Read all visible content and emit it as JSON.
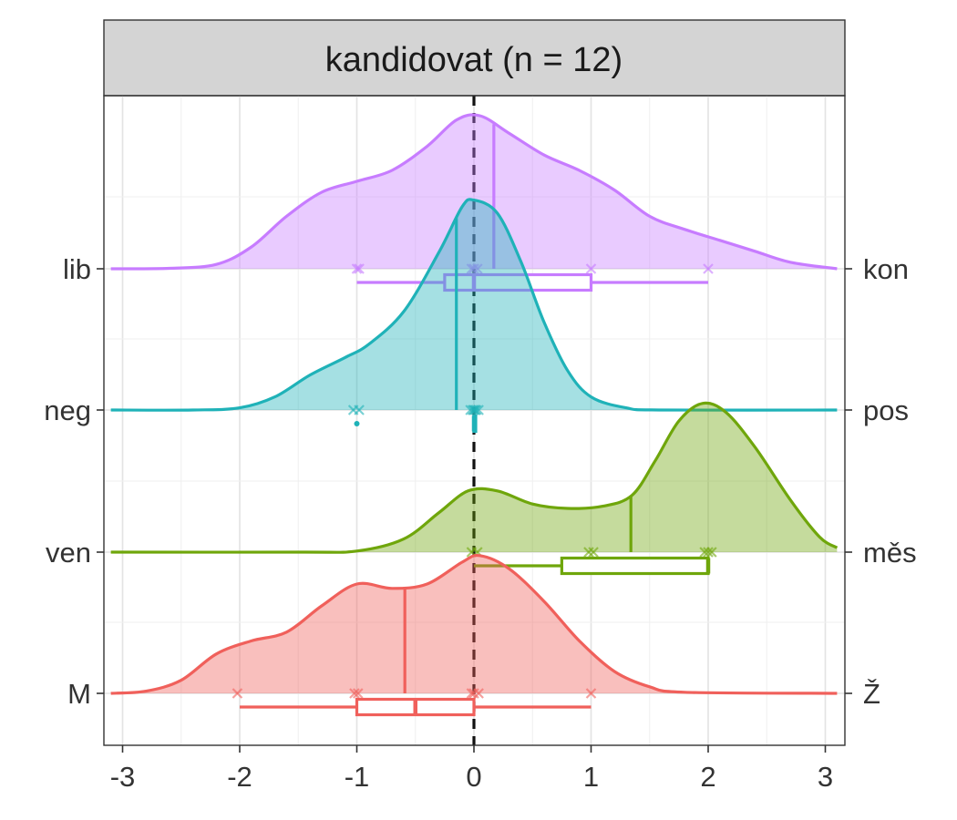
{
  "chart_data": {
    "type": "ridgeline-density-boxplot",
    "title": "kandidovat (n = 12)",
    "xlim": [
      -3,
      3
    ],
    "x_ticks": [
      -3,
      -2,
      -1,
      0,
      1,
      2,
      3
    ],
    "reference_line_x": 0,
    "grid": true,
    "rows": [
      {
        "left_label": "lib",
        "right_label": "kon",
        "color": "#c77cff",
        "median_x": 0.17,
        "density": [
          [
            -3.1,
            0
          ],
          [
            -2.6,
            0.002
          ],
          [
            -2.2,
            0.02
          ],
          [
            -1.9,
            0.1
          ],
          [
            -1.6,
            0.24
          ],
          [
            -1.3,
            0.35
          ],
          [
            -1.0,
            0.4
          ],
          [
            -0.7,
            0.45
          ],
          [
            -0.4,
            0.56
          ],
          [
            -0.15,
            0.68
          ],
          [
            0.05,
            0.7
          ],
          [
            0.3,
            0.62
          ],
          [
            0.6,
            0.52
          ],
          [
            0.9,
            0.45
          ],
          [
            1.2,
            0.36
          ],
          [
            1.5,
            0.24
          ],
          [
            1.8,
            0.18
          ],
          [
            2.1,
            0.13
          ],
          [
            2.4,
            0.08
          ],
          [
            2.7,
            0.03
          ],
          [
            3.1,
            0
          ]
        ],
        "points": [
          -1.0,
          -0.98,
          -0.02,
          0.0,
          0.03,
          1.0,
          2.0
        ],
        "box": {
          "whisker_low": -1.0,
          "q1": -0.25,
          "median": 0.0,
          "q3": 1.0,
          "whisker_high": 2.0
        },
        "outliers": []
      },
      {
        "left_label": "neg",
        "right_label": "pos",
        "color": "#1fb2b8",
        "median_x": -0.15,
        "density": [
          [
            -3.1,
            0
          ],
          [
            -2.4,
            0
          ],
          [
            -2.0,
            0.01
          ],
          [
            -1.7,
            0.06
          ],
          [
            -1.4,
            0.16
          ],
          [
            -1.1,
            0.24
          ],
          [
            -0.9,
            0.3
          ],
          [
            -0.6,
            0.45
          ],
          [
            -0.3,
            0.72
          ],
          [
            -0.1,
            0.93
          ],
          [
            0.0,
            0.96
          ],
          [
            0.2,
            0.9
          ],
          [
            0.4,
            0.68
          ],
          [
            0.6,
            0.4
          ],
          [
            0.8,
            0.18
          ],
          [
            1.0,
            0.06
          ],
          [
            1.3,
            0.01
          ],
          [
            1.6,
            0
          ],
          [
            3.1,
            0
          ]
        ],
        "points": [
          -1.03,
          -0.98,
          -0.03,
          -0.01,
          0.0,
          0.01,
          0.02,
          0.04
        ],
        "box": {
          "whisker_low": 0.0,
          "q1": 0.0,
          "median": 0.0,
          "q3": 0.0,
          "whisker_high": 0.0
        },
        "outliers": [
          -1.0
        ]
      },
      {
        "left_label": "ven",
        "right_label": "měs",
        "color": "#6fa60b",
        "median_x": 1.34,
        "density": [
          [
            -3.1,
            0
          ],
          [
            -1.5,
            0
          ],
          [
            -1.0,
            0.005
          ],
          [
            -0.6,
            0.06
          ],
          [
            -0.3,
            0.18
          ],
          [
            -0.05,
            0.28
          ],
          [
            0.2,
            0.28
          ],
          [
            0.5,
            0.22
          ],
          [
            0.8,
            0.2
          ],
          [
            1.1,
            0.21
          ],
          [
            1.35,
            0.26
          ],
          [
            1.55,
            0.42
          ],
          [
            1.75,
            0.6
          ],
          [
            1.95,
            0.68
          ],
          [
            2.15,
            0.64
          ],
          [
            2.4,
            0.48
          ],
          [
            2.7,
            0.24
          ],
          [
            2.95,
            0.07
          ],
          [
            3.1,
            0.02
          ]
        ],
        "points": [
          -0.02,
          0.03,
          0.98,
          1.02,
          1.97,
          2.0,
          2.03
        ],
        "box": {
          "whisker_low": 0.0,
          "q1": 0.75,
          "median": 2.0,
          "q3": 2.0,
          "whisker_high": 2.0
        },
        "outliers": []
      },
      {
        "left_label": "M",
        "right_label": "Ž",
        "color": "#f0605b",
        "median_x": -0.59,
        "density": [
          [
            -3.1,
            0
          ],
          [
            -2.8,
            0.01
          ],
          [
            -2.5,
            0.06
          ],
          [
            -2.2,
            0.18
          ],
          [
            -1.9,
            0.24
          ],
          [
            -1.6,
            0.28
          ],
          [
            -1.3,
            0.4
          ],
          [
            -1.0,
            0.5
          ],
          [
            -0.7,
            0.48
          ],
          [
            -0.4,
            0.5
          ],
          [
            -0.1,
            0.6
          ],
          [
            0.05,
            0.63
          ],
          [
            0.3,
            0.57
          ],
          [
            0.6,
            0.42
          ],
          [
            0.9,
            0.24
          ],
          [
            1.2,
            0.1
          ],
          [
            1.5,
            0.03
          ],
          [
            1.8,
            0.005
          ],
          [
            3.1,
            0
          ]
        ],
        "points": [
          -2.02,
          -1.02,
          -0.99,
          -0.02,
          0.0,
          0.04,
          1.0
        ],
        "box": {
          "whisker_low": -2.0,
          "q1": -1.0,
          "median": -0.5,
          "q3": 0.0,
          "whisker_high": 1.0
        },
        "outliers": []
      }
    ]
  }
}
